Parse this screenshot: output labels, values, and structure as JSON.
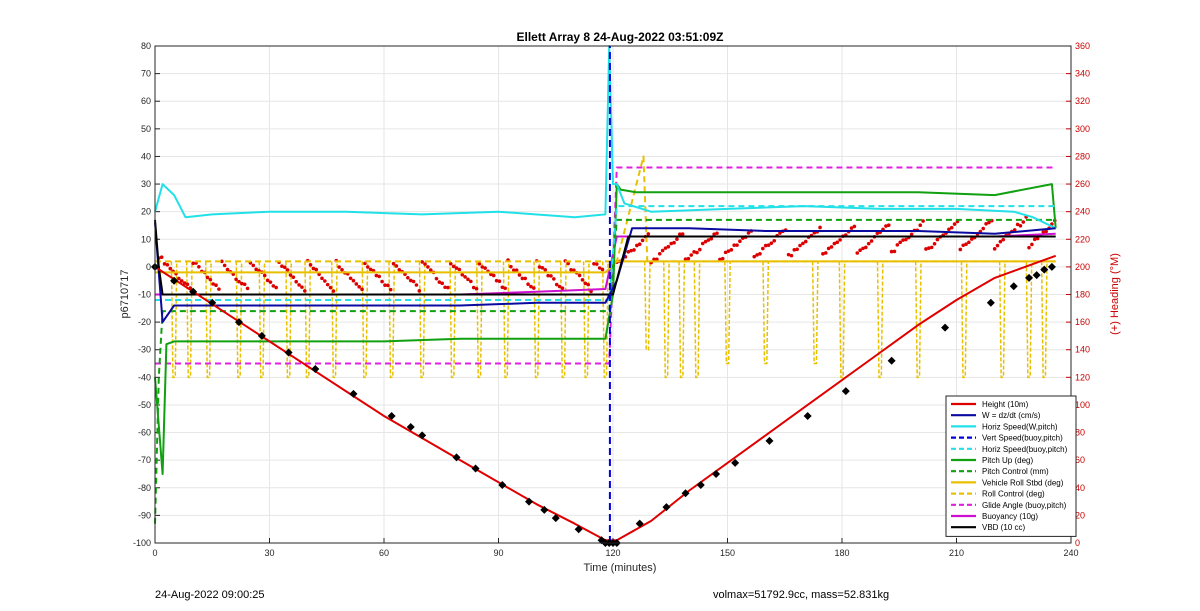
{
  "chart_data": {
    "type": "line",
    "title": "Ellett Array 8 24-Aug-2022 03:51:09Z",
    "xlabel": "Time (minutes)",
    "ylabel": "p6710717",
    "y2label": "(+) Heading (°M)",
    "xlim": [
      0,
      240
    ],
    "ylim": [
      -100,
      80
    ],
    "y2lim": [
      0,
      360
    ],
    "xticks": [
      0,
      30,
      60,
      90,
      120,
      150,
      180,
      210,
      240
    ],
    "yticks": [
      80,
      70,
      60,
      50,
      40,
      30,
      20,
      10,
      0,
      -10,
      -20,
      -30,
      -40,
      -50,
      -60,
      -70,
      -80,
      -90,
      -100
    ],
    "y2ticks": [
      360,
      340,
      320,
      300,
      280,
      260,
      240,
      220,
      200,
      180,
      160,
      140,
      120,
      100,
      80,
      60,
      40,
      20,
      0
    ],
    "grid": true,
    "legend_position": "lower-right",
    "colors": {
      "left_axis": "#262626",
      "right_axis": "#cc0000"
    },
    "series": [
      {
        "name": "Height (10m)",
        "color": "#e00000",
        "style": "solid",
        "x": [
          0,
          10,
          20,
          30,
          40,
          50,
          60,
          70,
          80,
          90,
          100,
          110,
          118,
          121,
          130,
          140,
          150,
          160,
          170,
          180,
          190,
          200,
          210,
          220,
          230,
          236
        ],
        "y": [
          0,
          -9,
          -18,
          -27,
          -36,
          -45,
          -54,
          -62,
          -70,
          -78,
          -86,
          -93,
          -99,
          -99,
          -92,
          -81,
          -71,
          -61,
          -51,
          -41,
          -31,
          -21,
          -12,
          -4,
          1,
          4
        ]
      },
      {
        "name": "W = dz/dt (cm/s)",
        "color": "#0a0aa0",
        "style": "solid",
        "x": [
          0,
          2,
          5,
          20,
          40,
          60,
          80,
          100,
          118,
          121,
          125,
          140,
          160,
          180,
          200,
          220,
          236
        ],
        "y": [
          16,
          -20,
          -14,
          -14,
          -14,
          -14,
          -14,
          -13,
          -13,
          -5,
          14,
          14,
          13,
          13,
          13,
          12,
          14
        ]
      },
      {
        "name": "Horiz Speed(W,pitch)",
        "color": "#22e0e8",
        "style": "solid",
        "x": [
          0,
          2,
          5,
          8,
          15,
          30,
          50,
          70,
          90,
          110,
          118,
          119,
          120,
          121,
          123,
          130,
          150,
          170,
          190,
          210,
          225,
          230,
          236
        ],
        "y": [
          20,
          30,
          26,
          18,
          19,
          20,
          20,
          19,
          20,
          18,
          19,
          80,
          30,
          30,
          23,
          20,
          21,
          22,
          21,
          21,
          20,
          18,
          14
        ]
      },
      {
        "name": "Vert Speed(buoy,pitch)",
        "color": "#0000dd",
        "style": "dashed",
        "x": [
          119.2,
          119.2
        ],
        "y": [
          -100,
          80
        ]
      },
      {
        "name": "Horiz Speed(buoy,pitch)",
        "color": "#22e0e8",
        "style": "dashed",
        "x": [
          0,
          5,
          119,
          121,
          236
        ],
        "y": [
          -12,
          -12,
          -12,
          22,
          22
        ]
      },
      {
        "name": "Pitch Up (deg)",
        "color": "#10a010",
        "style": "solid",
        "x": [
          0,
          2,
          3,
          5,
          20,
          40,
          60,
          80,
          100,
          118,
          120,
          121,
          122,
          126,
          140,
          160,
          180,
          200,
          220,
          235,
          236
        ],
        "y": [
          -40,
          -75,
          -28,
          -27,
          -27,
          -27,
          -27,
          -26,
          -26,
          -26,
          -10,
          30,
          28,
          27,
          27,
          27,
          27,
          27,
          26,
          30,
          14
        ]
      },
      {
        "name": "Pitch Control (mm)",
        "color": "#10a010",
        "style": "dashed",
        "x": [
          0,
          1,
          2,
          5,
          119,
          121,
          236
        ],
        "y": [
          -93,
          -40,
          -16,
          -16,
          -16,
          17,
          17
        ]
      },
      {
        "name": "Vehicle Roll Stbd (deg)",
        "color": "#e8c000",
        "style": "solid",
        "x": [
          0,
          20,
          40,
          60,
          80,
          100,
          118,
          121,
          140,
          160,
          180,
          200,
          220,
          236
        ],
        "y": [
          -2,
          -2,
          -2,
          -2,
          -2,
          -2,
          -2,
          2,
          2,
          2,
          2,
          2,
          2,
          2
        ]
      },
      {
        "name": "Roll Control (deg)",
        "color": "#e8c000",
        "style": "dashed",
        "x": [
          0,
          5,
          25,
          50,
          75,
          100,
          119,
          121,
          128,
          129,
          150,
          175,
          200,
          225,
          236
        ],
        "y": [
          2,
          2,
          2,
          2,
          2,
          2,
          2,
          2,
          40,
          2,
          2,
          2,
          2,
          2,
          2
        ]
      },
      {
        "name": "Glide Angle (buoy,pitch)",
        "color": "#e020e0",
        "style": "dashed",
        "x": [
          0,
          119,
          121,
          236
        ],
        "y": [
          -35,
          -35,
          36,
          36
        ]
      },
      {
        "name": "Buoyancy (10g)",
        "color": "#d010d0",
        "style": "solid",
        "x": [
          0,
          20,
          40,
          60,
          80,
          100,
          118,
          121,
          140,
          160,
          180,
          200,
          220,
          236
        ],
        "y": [
          -10,
          -10,
          -10,
          -10,
          -10,
          -9,
          -8,
          11,
          11,
          11,
          11,
          11,
          11,
          12
        ]
      },
      {
        "name": "VBD (10 cc)",
        "color": "#000000",
        "style": "solid",
        "x": [
          0,
          1,
          2,
          5,
          118,
          120,
          124,
          200,
          236
        ],
        "y": [
          17,
          0,
          -10,
          -10,
          -10,
          -10,
          11,
          11,
          11
        ]
      }
    ],
    "heading_scatter": {
      "color": "#dd0000",
      "axis": "right"
    },
    "roll_control_spikes": {
      "color": "#e8c000",
      "x": [
        5,
        9,
        14,
        22,
        28,
        35,
        40,
        47,
        55,
        62,
        70,
        78,
        85,
        92,
        100,
        107,
        113,
        118,
        129,
        134,
        138,
        142,
        150,
        160,
        173,
        180,
        190,
        200,
        212,
        222,
        229,
        233
      ],
      "y": [
        -40,
        -40,
        -40,
        -40,
        -40,
        -40,
        -40,
        -40,
        -40,
        -40,
        -40,
        -40,
        -40,
        -40,
        -40,
        -40,
        -40,
        -40,
        -30,
        -40,
        -40,
        -40,
        -35,
        -35,
        -35,
        -40,
        -40,
        -40,
        -40,
        -40,
        -40,
        -40
      ]
    },
    "markers": {
      "color": "#000000",
      "x": [
        0,
        5,
        10,
        15,
        22,
        28,
        35,
        42,
        52,
        62,
        67,
        70,
        79,
        84,
        91,
        98,
        102,
        105,
        111,
        117,
        118,
        119,
        120,
        121,
        127,
        134,
        139,
        143,
        147,
        152,
        161,
        171,
        181,
        193,
        207,
        219,
        225,
        229,
        231,
        233,
        235
      ],
      "y": [
        0,
        -5,
        -9,
        -13,
        -20,
        -25,
        -31,
        -37,
        -46,
        -54,
        -58,
        -61,
        -69,
        -73,
        -79,
        -85,
        -88,
        -91,
        -95,
        -99,
        -100,
        -100,
        -100,
        -100,
        -93,
        -87,
        -82,
        -79,
        -75,
        -71,
        -63,
        -54,
        -45,
        -34,
        -22,
        -13,
        -7,
        -4,
        -3,
        -1,
        0
      ]
    }
  },
  "footer": {
    "date": "24-Aug-2022 09:00:25",
    "info": "volmax=51792.9cc, mass=52.831kg"
  }
}
